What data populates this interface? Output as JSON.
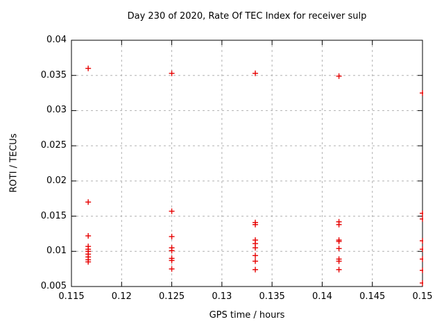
{
  "chart_data": {
    "type": "scatter",
    "title": "Day 230 of 2020, Rate Of TEC Index for receiver sulp",
    "xlabel": "GPS time / hours",
    "ylabel": "ROTI / TECUs",
    "xlim": [
      0.115,
      0.15
    ],
    "ylim": [
      0.005,
      0.04
    ],
    "grid": true,
    "legend": "none",
    "marker": {
      "shape": "plus",
      "size": 4
    },
    "colors": {
      "marker": "#e60000",
      "grid": "#b0b0b0",
      "axis": "#000000",
      "background": "#ffffff"
    },
    "x_ticks": [
      {
        "v": 0.115,
        "label": "0.115"
      },
      {
        "v": 0.12,
        "label": "0.12"
      },
      {
        "v": 0.125,
        "label": "0.125"
      },
      {
        "v": 0.13,
        "label": "0.13"
      },
      {
        "v": 0.135,
        "label": "0.135"
      },
      {
        "v": 0.14,
        "label": "0.14"
      },
      {
        "v": 0.145,
        "label": "0.145"
      },
      {
        "v": 0.15,
        "label": "0.15"
      }
    ],
    "y_ticks": [
      {
        "v": 0.005,
        "label": "0.005"
      },
      {
        "v": 0.01,
        "label": "0.01"
      },
      {
        "v": 0.015,
        "label": "0.015"
      },
      {
        "v": 0.02,
        "label": "0.02"
      },
      {
        "v": 0.025,
        "label": "0.025"
      },
      {
        "v": 0.03,
        "label": "0.03"
      },
      {
        "v": 0.035,
        "label": "0.035"
      },
      {
        "v": 0.04,
        "label": "0.04"
      }
    ],
    "points": [
      [
        0.11667,
        0.036
      ],
      [
        0.11667,
        0.017
      ],
      [
        0.11667,
        0.0122
      ],
      [
        0.11667,
        0.0107
      ],
      [
        0.11667,
        0.0103
      ],
      [
        0.11667,
        0.01
      ],
      [
        0.11667,
        0.0096
      ],
      [
        0.11667,
        0.0092
      ],
      [
        0.11667,
        0.0088
      ],
      [
        0.11667,
        0.0085
      ],
      [
        0.125,
        0.0353
      ],
      [
        0.125,
        0.0157
      ],
      [
        0.125,
        0.0121
      ],
      [
        0.125,
        0.0105
      ],
      [
        0.125,
        0.0101
      ],
      [
        0.125,
        0.009
      ],
      [
        0.125,
        0.0087
      ],
      [
        0.125,
        0.0075
      ],
      [
        0.13333,
        0.0353
      ],
      [
        0.13333,
        0.0141
      ],
      [
        0.13333,
        0.0138
      ],
      [
        0.13333,
        0.0116
      ],
      [
        0.13333,
        0.0111
      ],
      [
        0.13333,
        0.0105
      ],
      [
        0.13333,
        0.0094
      ],
      [
        0.13333,
        0.0086
      ],
      [
        0.13333,
        0.0074
      ],
      [
        0.14167,
        0.0349
      ],
      [
        0.14167,
        0.0142
      ],
      [
        0.14167,
        0.0138
      ],
      [
        0.14167,
        0.0116
      ],
      [
        0.14167,
        0.0114
      ],
      [
        0.14167,
        0.0104
      ],
      [
        0.14167,
        0.0089
      ],
      [
        0.14167,
        0.0086
      ],
      [
        0.14167,
        0.0074
      ],
      [
        0.15,
        0.0325
      ],
      [
        0.15,
        0.0154
      ],
      [
        0.15,
        0.0146
      ],
      [
        0.15,
        0.0115
      ],
      [
        0.15,
        0.0103
      ],
      [
        0.15,
        0.0089
      ],
      [
        0.15,
        0.0073
      ],
      [
        0.15,
        0.0055
      ]
    ]
  }
}
